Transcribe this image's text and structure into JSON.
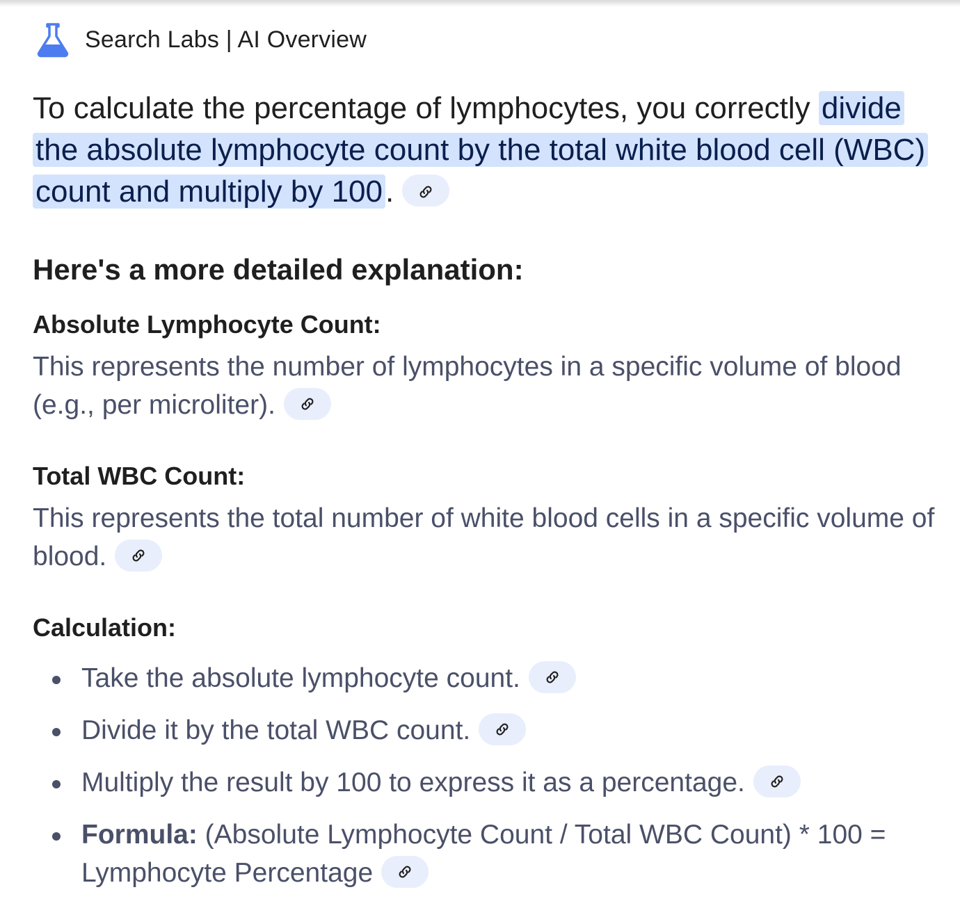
{
  "header": {
    "title": "Search Labs | AI Overview",
    "icon": "flask-icon",
    "icon_color": "#4c7cf0"
  },
  "intro": {
    "lead": "To calculate the percentage of lymphocytes, you correctly ",
    "highlight": "divide the absolute lymphocyte count by the total white blood cell (WBC) count and multiply by 100",
    "tail": ".",
    "highlight_color": "#d3e3fd"
  },
  "explanation_heading": "Here's a more detailed explanation:",
  "sections": [
    {
      "title": "Absolute Lymphocyte Count:",
      "text": "This represents the number of lymphocytes in a specific volume of blood (e.g., per microliter)."
    },
    {
      "title": "Total WBC Count:",
      "text": "This represents the total number of white blood cells in a specific volume of blood."
    }
  ],
  "calculation": {
    "title": "Calculation:",
    "steps": [
      "Take the absolute lymphocyte count.",
      "Divide it by the total WBC count.",
      "Multiply the result by 100 to express it as a percentage."
    ],
    "formula_label": "Formula:",
    "formula_text": " (Absolute Lymphocyte Count / Total WBC Count) * 100 = Lymphocyte Percentage"
  },
  "link_chip_icon": "link-icon",
  "chip_color": "#e8eefc"
}
